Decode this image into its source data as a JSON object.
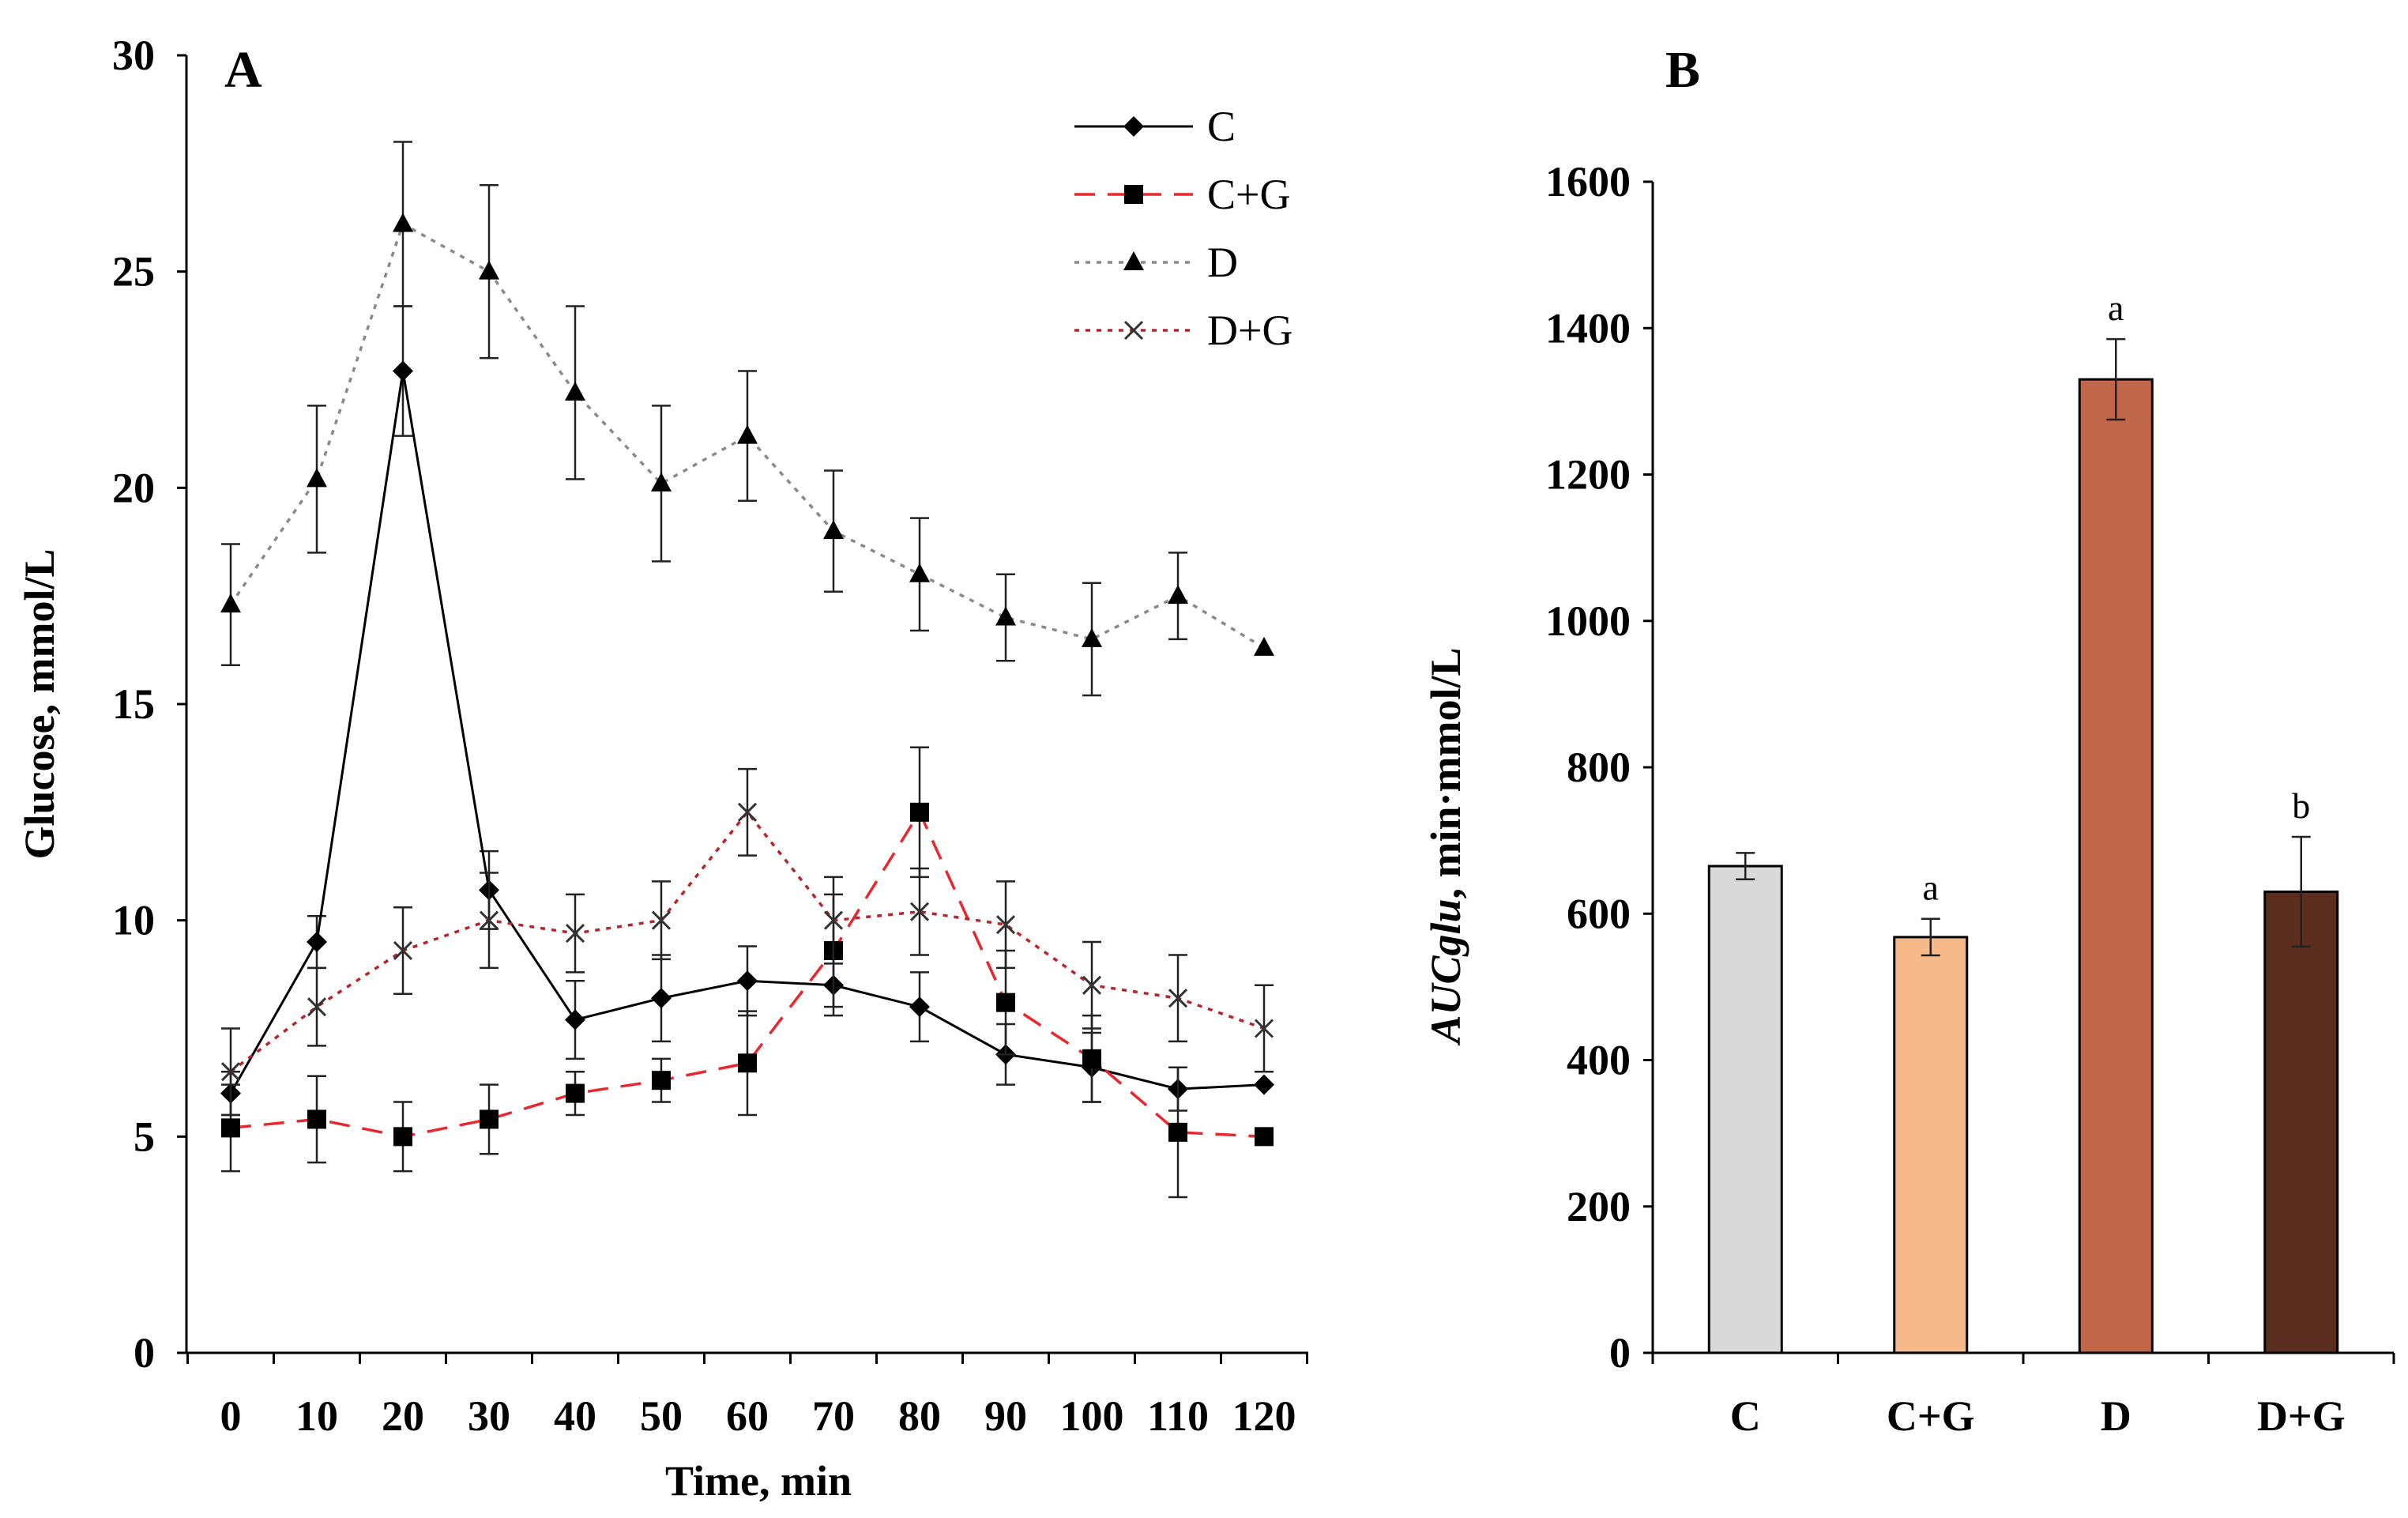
{
  "chart_data": [
    {
      "panel": "A",
      "type": "line",
      "title": "",
      "xlabel": "Time, min",
      "ylabel": "Glucose, mmol/L",
      "ylim": [
        0,
        30
      ],
      "yticks": [
        0,
        5,
        10,
        15,
        20,
        25,
        30
      ],
      "x": [
        0,
        10,
        20,
        30,
        40,
        50,
        60,
        70,
        80,
        90,
        100,
        110,
        120
      ],
      "xtick_labels": [
        "0",
        "10",
        "20",
        "30",
        "40",
        "50",
        "60",
        "70",
        "80",
        "90",
        "100",
        "110",
        "120"
      ],
      "legend_position": "top-right",
      "series": [
        {
          "name": "C",
          "color": "#000000",
          "marker": "diamond",
          "line_style": "solid",
          "values": [
            6.0,
            9.5,
            22.7,
            10.7,
            7.7,
            8.2,
            8.6,
            8.5,
            8.0,
            6.9,
            6.6,
            6.1,
            6.2
          ],
          "errors": [
            0.5,
            0.6,
            1.5,
            0.9,
            0.9,
            1.0,
            0.8,
            0.7,
            0.8,
            0.7,
            0.8,
            0.5,
            0.0
          ]
        },
        {
          "name": "C+G",
          "color": "#e8272f",
          "marker": "square",
          "line_style": "dashed",
          "values": [
            5.2,
            5.4,
            5.0,
            5.4,
            6.0,
            6.3,
            6.7,
            9.3,
            12.5,
            8.1,
            6.8,
            5.1,
            5.0
          ],
          "errors": [
            1.0,
            1.0,
            0.8,
            0.8,
            0.5,
            0.5,
            1.2,
            1.3,
            1.5,
            1.2,
            1.0,
            1.5,
            0.0
          ]
        },
        {
          "name": "D",
          "color": "#8a8a8a",
          "marker": "triangle",
          "line_style": "dotted",
          "values": [
            17.3,
            20.2,
            26.1,
            25.0,
            22.2,
            20.1,
            21.2,
            19.0,
            18.0,
            17.0,
            16.5,
            17.5,
            16.3
          ],
          "errors": [
            1.4,
            1.7,
            1.9,
            2.0,
            2.0,
            1.8,
            1.5,
            1.4,
            1.3,
            1.0,
            1.3,
            1.0,
            0.0
          ]
        },
        {
          "name": "D+G",
          "color": "#b8242b",
          "marker": "x",
          "line_style": "dotted",
          "values": [
            6.5,
            8.0,
            9.3,
            10.0,
            9.7,
            10.0,
            12.5,
            10.0,
            10.2,
            9.9,
            8.5,
            8.2,
            7.5
          ],
          "errors": [
            1.0,
            0.9,
            1.0,
            1.1,
            0.9,
            0.9,
            1.0,
            1.0,
            1.0,
            1.0,
            1.0,
            1.0,
            1.0
          ]
        }
      ]
    },
    {
      "panel": "B",
      "type": "bar",
      "title": "",
      "xlabel": "",
      "ylabel_italic": "AUCglu",
      "ylabel_rest": ", min·mmol/L",
      "ylim": [
        0,
        1600
      ],
      "yticks": [
        0,
        200,
        400,
        600,
        800,
        1000,
        1200,
        1400,
        1600
      ],
      "categories": [
        "C",
        "C+G",
        "D",
        "D+G"
      ],
      "values": [
        665,
        568,
        1330,
        630
      ],
      "errors": [
        18,
        25,
        55,
        75
      ],
      "colors": [
        "#d9d9d9",
        "#f5b98a",
        "#c0674a",
        "#5a2d1e"
      ],
      "significance": [
        "",
        "a",
        "a",
        "b"
      ]
    }
  ]
}
